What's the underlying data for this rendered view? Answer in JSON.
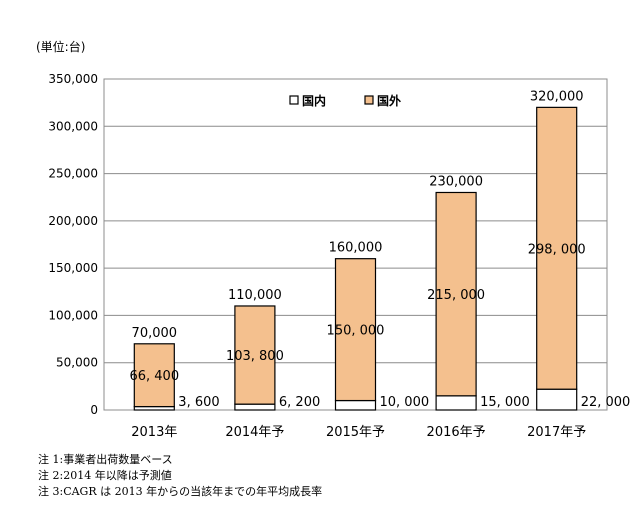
{
  "unit_label": "(単位:台)",
  "legend": [
    {
      "label": "国内",
      "color": "#ffffff"
    },
    {
      "label": "国外",
      "color": "#f4c08e"
    }
  ],
  "notes": [
    "注 1:事業者出荷数量ベース",
    "注 2:2014 年以降は予測値",
    "注 3:CAGR は 2013 年からの当該年までの年平均成長率"
  ],
  "colors": {
    "overseas": "#f4c08e",
    "domestic": "#ffffff",
    "border": "#000000",
    "plot_border": "#8c8c8c",
    "grid": "#8c8c8c"
  },
  "chart_data": {
    "type": "bar",
    "stacked": true,
    "categories": [
      "2013年",
      "2014年予",
      "2015年予",
      "2016年予",
      "2017年予"
    ],
    "series": [
      {
        "name": "国内",
        "values": [
          3600,
          6200,
          10000,
          15000,
          22000
        ],
        "labels": [
          "3, 600",
          "6, 200",
          "10, 000",
          "15, 000",
          "22, 000"
        ]
      },
      {
        "name": "国外",
        "values": [
          66400,
          103800,
          150000,
          215000,
          298000
        ],
        "labels": [
          "66, 400",
          "103, 800",
          "150, 000",
          "215, 000",
          "298, 000"
        ]
      }
    ],
    "totals": [
      70000,
      110000,
      160000,
      230000,
      320000
    ],
    "total_labels": [
      "70,000",
      "110,000",
      "160,000",
      "230,000",
      "320,000"
    ],
    "yticks": [
      0,
      50000,
      100000,
      150000,
      200000,
      250000,
      300000,
      350000
    ],
    "ytick_labels": [
      "0",
      "50,000",
      "100,000",
      "150,000",
      "200,000",
      "250,000",
      "300,000",
      "350,000"
    ],
    "ylim": [
      0,
      350000
    ],
    "grid": true,
    "legend_position": "top-center"
  }
}
